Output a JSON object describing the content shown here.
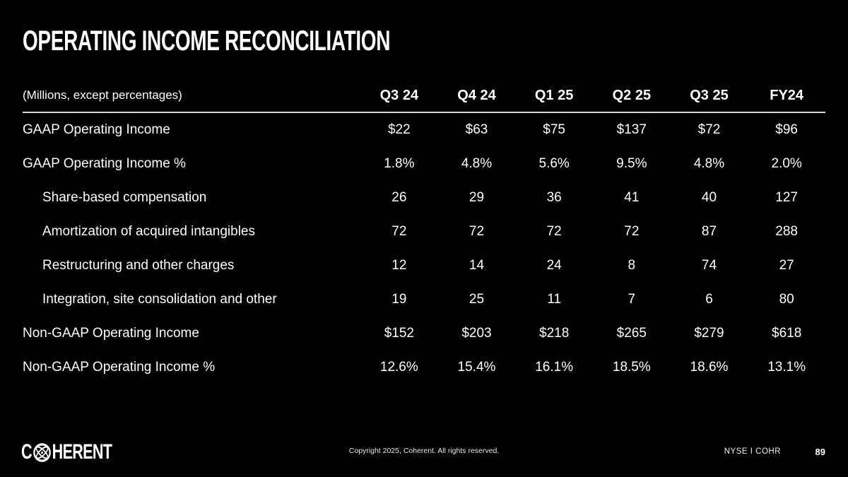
{
  "slide": {
    "title": "OPERATING INCOME RECONCILIATION",
    "units_note": "(Millions, except percentages)"
  },
  "table": {
    "columns": [
      "Q3 24",
      "Q4 24",
      "Q1 25",
      "Q2 25",
      "Q3 25",
      "FY24"
    ],
    "rows": [
      {
        "label": "GAAP Operating Income",
        "indent": false,
        "values": [
          "$22",
          "$63",
          "$75",
          "$137",
          "$72",
          "$96"
        ]
      },
      {
        "label": "GAAP Operating Income %",
        "indent": false,
        "values": [
          "1.8%",
          "4.8%",
          "5.6%",
          "9.5%",
          "4.8%",
          "2.0%"
        ]
      },
      {
        "label": "Share-based compensation",
        "indent": true,
        "values": [
          "26",
          "29",
          "36",
          "41",
          "40",
          "127"
        ]
      },
      {
        "label": "Amortization of acquired intangibles",
        "indent": true,
        "values": [
          "72",
          "72",
          "72",
          "72",
          "87",
          "288"
        ]
      },
      {
        "label": "Restructuring and other charges",
        "indent": true,
        "values": [
          "12",
          "14",
          "24",
          "8",
          "74",
          "27"
        ]
      },
      {
        "label": "Integration, site consolidation and other",
        "indent": true,
        "values": [
          "19",
          "25",
          "11",
          "7",
          "6",
          "80"
        ]
      },
      {
        "label": "Non-GAAP Operating Income",
        "indent": false,
        "values": [
          "$152",
          "$203",
          "$218",
          "$265",
          "$279",
          "$618"
        ]
      },
      {
        "label": "Non-GAAP Operating Income %",
        "indent": false,
        "values": [
          "12.6%",
          "15.4%",
          "16.1%",
          "18.5%",
          "18.6%",
          "13.1%"
        ]
      }
    ]
  },
  "footer": {
    "logo_prefix": "C",
    "logo_suffix": "HERENT",
    "copyright": "Copyright 2025, Coherent. All rights reserved.",
    "ticker": "NYSE I COHR",
    "page_number": "89"
  },
  "colors": {
    "background": "#000000",
    "text": "#ffffff",
    "rule": "#d9d9d9"
  }
}
